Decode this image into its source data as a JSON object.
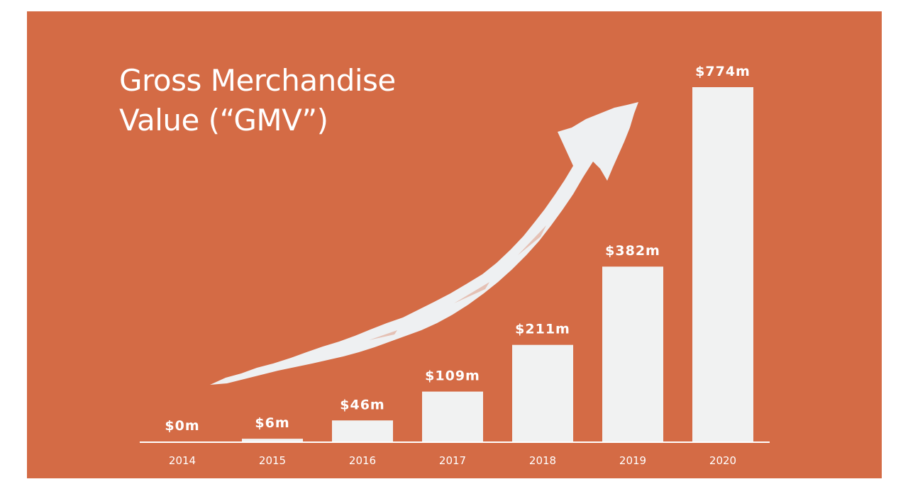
{
  "title_line1": "Gross Merchandise",
  "title_line2": "Value (“GMV”)",
  "colors": {
    "background": "#d46b45",
    "bar": "#f1f2f2",
    "arrow": "#eef0f2",
    "text": "#ffffff"
  },
  "chart_data": {
    "type": "bar",
    "title": "Gross Merchandise Value (“GMV”)",
    "categories": [
      "2014",
      "2015",
      "2016",
      "2017",
      "2018",
      "2019",
      "2020"
    ],
    "values": [
      0,
      6,
      46,
      109,
      211,
      382,
      774
    ],
    "data_labels": [
      "$0m",
      "$6m",
      "$46m",
      "$109m",
      "$211m",
      "$382m",
      "$774m"
    ],
    "unit": "$m",
    "ylim": [
      0,
      774
    ],
    "xlabel": "",
    "ylabel": "",
    "grid": false,
    "legend": "none",
    "annotation": "upward-trend-arrow"
  }
}
